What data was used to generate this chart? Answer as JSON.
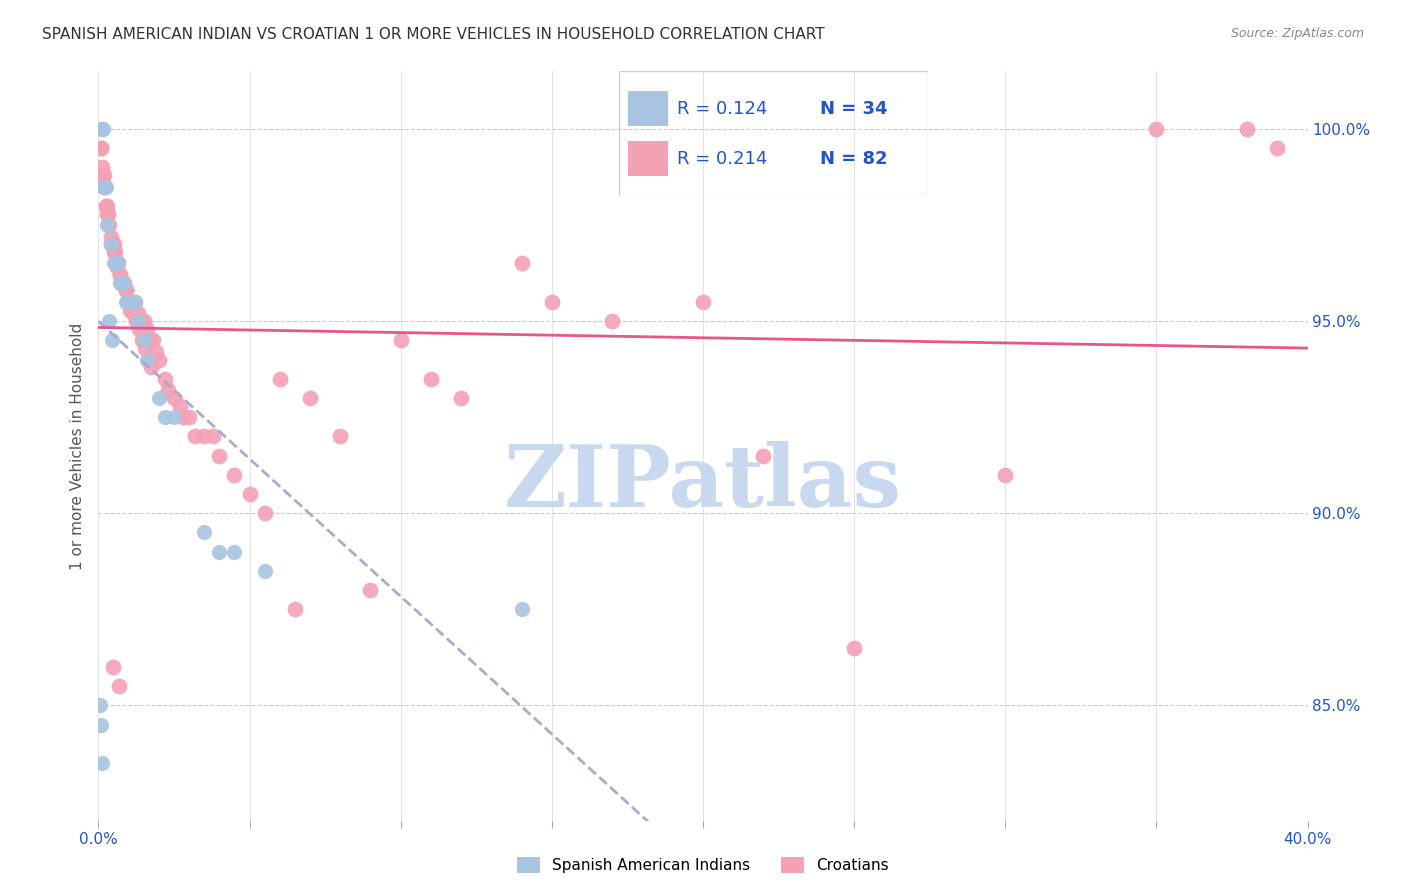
{
  "title": "SPANISH AMERICAN INDIAN VS CROATIAN 1 OR MORE VEHICLES IN HOUSEHOLD CORRELATION CHART",
  "source": "Source: ZipAtlas.com",
  "ylabel": "1 or more Vehicles in Household",
  "xlim": [
    0.0,
    40.0
  ],
  "ylim": [
    82.0,
    101.5
  ],
  "x_ticks": [
    0.0,
    5.0,
    10.0,
    15.0,
    20.0,
    25.0,
    30.0,
    35.0,
    40.0
  ],
  "x_tick_labels": [
    "0.0%",
    "",
    "",
    "",
    "",
    "",
    "",
    "",
    "40.0%"
  ],
  "y_ticks": [
    85.0,
    90.0,
    95.0,
    100.0
  ],
  "y_tick_labels": [
    "85.0%",
    "90.0%",
    "95.0%",
    "100.0%"
  ],
  "blue_R": "0.124",
  "blue_N": "34",
  "pink_R": "0.214",
  "pink_N": "82",
  "blue_color": "#a8c4e0",
  "pink_color": "#f4a0b5",
  "pink_line_color": "#e8558a",
  "dashed_line_color": "#aaaacc",
  "watermark_color": "#c8d8ee",
  "blue_x": [
    0.05,
    0.08,
    0.1,
    0.12,
    0.15,
    0.2,
    0.25,
    0.3,
    0.35,
    0.4,
    0.45,
    0.5,
    0.55,
    0.6,
    0.65,
    0.7,
    0.75,
    0.8,
    0.9,
    1.0,
    1.1,
    1.15,
    1.2,
    1.3,
    1.5,
    1.6,
    2.0,
    2.2,
    2.5,
    3.5,
    4.0,
    4.5,
    5.5,
    14.0
  ],
  "blue_y": [
    85.0,
    84.5,
    100.0,
    83.5,
    100.0,
    98.5,
    98.5,
    97.5,
    95.0,
    97.0,
    94.5,
    96.5,
    96.5,
    96.5,
    96.5,
    96.0,
    96.0,
    96.0,
    95.5,
    95.5,
    95.5,
    95.5,
    95.5,
    95.0,
    94.5,
    94.0,
    93.0,
    92.5,
    92.5,
    89.5,
    89.0,
    89.0,
    88.5,
    87.5
  ],
  "pink_x": [
    0.08,
    0.1,
    0.12,
    0.15,
    0.18,
    0.2,
    0.22,
    0.25,
    0.28,
    0.3,
    0.32,
    0.35,
    0.4,
    0.42,
    0.45,
    0.48,
    0.5,
    0.52,
    0.55,
    0.6,
    0.62,
    0.65,
    0.68,
    0.7,
    0.72,
    0.75,
    0.8,
    0.82,
    0.85,
    0.9,
    0.92,
    0.95,
    1.0,
    1.05,
    1.1,
    1.15,
    1.2,
    1.25,
    1.3,
    1.35,
    1.4,
    1.45,
    1.5,
    1.55,
    1.6,
    1.65,
    1.7,
    1.75,
    1.8,
    1.9,
    2.0,
    2.2,
    2.3,
    2.5,
    2.7,
    2.8,
    3.0,
    3.2,
    3.5,
    3.8,
    4.0,
    4.5,
    5.0,
    5.5,
    6.0,
    6.5,
    7.0,
    8.0,
    9.0,
    10.0,
    11.0,
    12.0,
    14.0,
    15.0,
    17.0,
    20.0,
    22.0,
    25.0,
    30.0,
    35.0,
    38.0,
    39.0
  ],
  "pink_y": [
    99.5,
    99.5,
    99.0,
    98.8,
    98.8,
    98.5,
    98.5,
    98.0,
    98.0,
    97.8,
    97.8,
    97.5,
    97.0,
    97.2,
    97.0,
    86.0,
    97.0,
    96.8,
    96.8,
    96.5,
    96.4,
    96.5,
    85.5,
    96.2,
    96.2,
    96.0,
    96.0,
    96.0,
    96.0,
    95.8,
    95.8,
    95.5,
    95.5,
    95.3,
    95.5,
    95.2,
    95.5,
    95.0,
    95.2,
    94.8,
    95.0,
    94.5,
    95.0,
    94.3,
    94.8,
    94.0,
    94.5,
    93.8,
    94.5,
    94.2,
    94.0,
    93.5,
    93.2,
    93.0,
    92.8,
    92.5,
    92.5,
    92.0,
    92.0,
    92.0,
    91.5,
    91.0,
    90.5,
    90.0,
    93.5,
    87.5,
    93.0,
    92.0,
    88.0,
    94.5,
    93.5,
    93.0,
    96.5,
    95.5,
    95.0,
    95.5,
    91.5,
    86.5,
    91.0,
    100.0,
    100.0,
    99.5
  ]
}
